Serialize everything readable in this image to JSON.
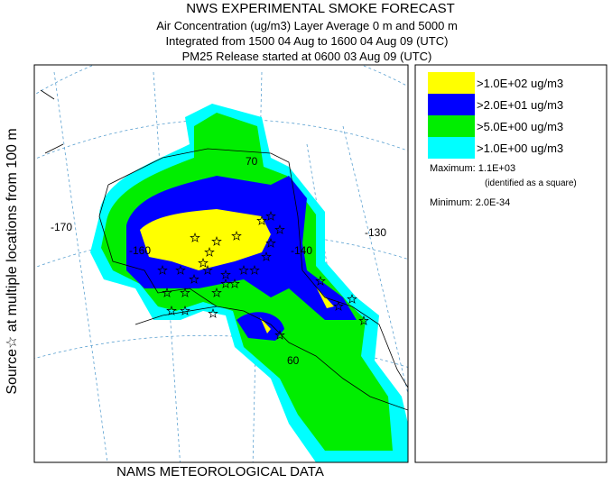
{
  "header": {
    "title": "NWS EXPERIMENTAL SMOKE FORECAST",
    "lines": [
      "Air Concentration (ug/m3) Layer Average    0 m and  5000 m",
      "Integrated from 1500 04 Aug to 1600 04 Aug 09 (UTC)",
      "PM25 Release started at 0600 03 Aug 09 (UTC)"
    ]
  },
  "side_label": "Source☆  at multiple locations   from   100 m",
  "footer": "NAMS METEOROLOGICAL DATA",
  "legend": {
    "items": [
      {
        "label": ">1.0E+02 ug/m3",
        "color": "#ffff00"
      },
      {
        "label": ">2.0E+01 ug/m3",
        "color": "#0000ff"
      },
      {
        "label": ">5.0E+00 ug/m3",
        "color": "#00ee00"
      },
      {
        "label": ">1.0E+00 ug/m3",
        "color": "#00ffff"
      }
    ],
    "maximum": "Maximum: 1.1E+03",
    "maximum_note": "(identified as a square)",
    "minimum": "Minimum: 2.0E-34"
  },
  "map": {
    "labels": [
      "-170",
      "-160",
      "-140",
      "-130",
      "70",
      "60"
    ]
  }
}
